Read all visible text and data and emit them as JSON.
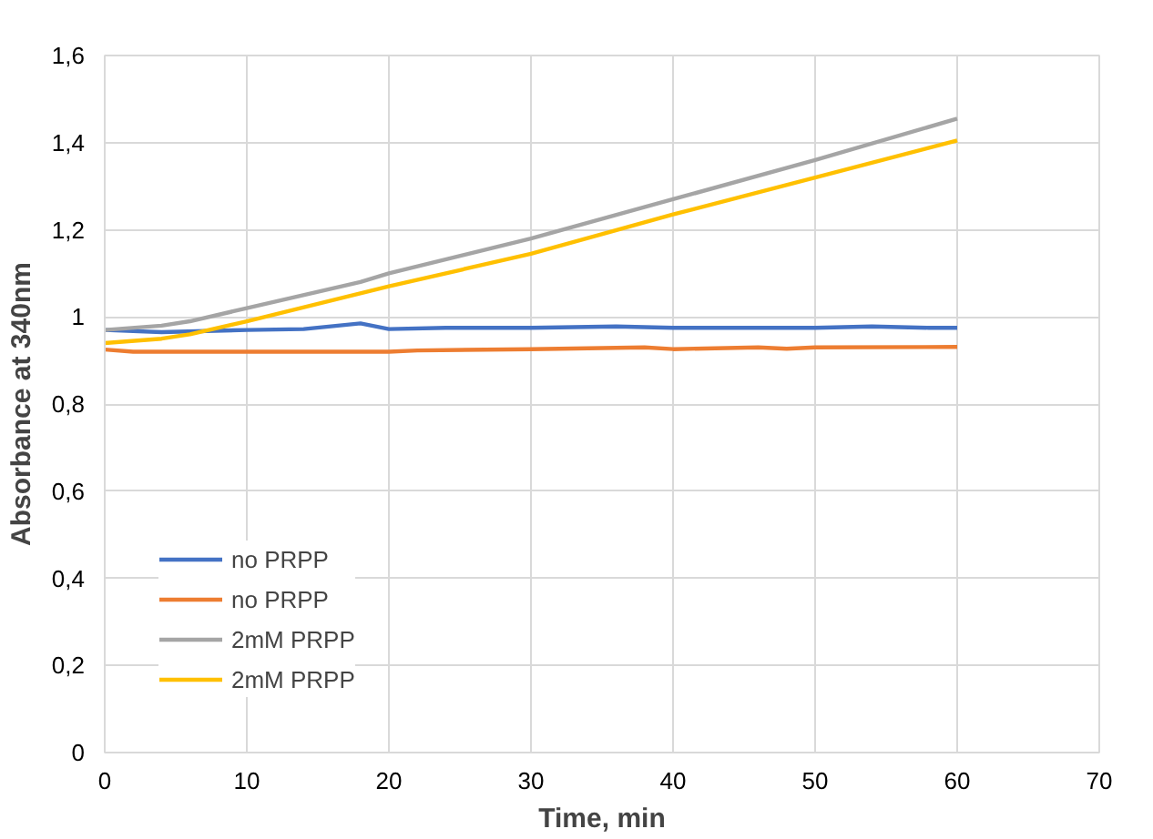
{
  "chart_data": {
    "type": "line",
    "xlabel": "Time, min",
    "ylabel": "Absorbance at 340nm",
    "xlim": [
      0,
      70
    ],
    "xticks": [
      0,
      10,
      20,
      30,
      40,
      50,
      60,
      70
    ],
    "ylim": [
      0,
      1.6
    ],
    "yticks": [
      {
        "value": 0,
        "label": "0"
      },
      {
        "value": 0.2,
        "label": "0,2"
      },
      {
        "value": 0.4,
        "label": "0,4"
      },
      {
        "value": 0.6,
        "label": "0,6"
      },
      {
        "value": 0.8,
        "label": "0,8"
      },
      {
        "value": 1,
        "label": "1"
      },
      {
        "value": 1.2,
        "label": "1,2"
      },
      {
        "value": 1.4,
        "label": "1,4"
      },
      {
        "value": 1.6,
        "label": "1,6"
      }
    ],
    "grid": true,
    "legend": "bottom left",
    "marker": "none",
    "line_style": "solid",
    "series": [
      {
        "name": "no PRPP",
        "color": "#4472c4",
        "x": [
          0,
          4,
          10,
          14,
          18,
          20,
          24,
          30,
          36,
          40,
          50,
          54,
          58,
          60
        ],
        "values": [
          0.97,
          0.965,
          0.97,
          0.972,
          0.985,
          0.972,
          0.975,
          0.975,
          0.978,
          0.975,
          0.975,
          0.978,
          0.975,
          0.975
        ]
      },
      {
        "name": "no PRPP",
        "color": "#ed7d31",
        "x": [
          0,
          2,
          20,
          22,
          30,
          38,
          40,
          46,
          48,
          50,
          60
        ],
        "values": [
          0.925,
          0.92,
          0.92,
          0.923,
          0.926,
          0.93,
          0.926,
          0.93,
          0.927,
          0.93,
          0.931
        ]
      },
      {
        "name": "2mM PRPP",
        "color": "#a5a5a5",
        "x": [
          0,
          4,
          6,
          10,
          18,
          20,
          30,
          40,
          50,
          60
        ],
        "values": [
          0.97,
          0.98,
          0.99,
          1.02,
          1.08,
          1.1,
          1.18,
          1.27,
          1.36,
          1.455
        ]
      },
      {
        "name": "2mM PRPP",
        "color": "#ffc000",
        "x": [
          0,
          4,
          6,
          10,
          20,
          30,
          40,
          50,
          60
        ],
        "values": [
          0.94,
          0.95,
          0.96,
          0.99,
          1.07,
          1.145,
          1.235,
          1.32,
          1.405
        ]
      }
    ]
  }
}
